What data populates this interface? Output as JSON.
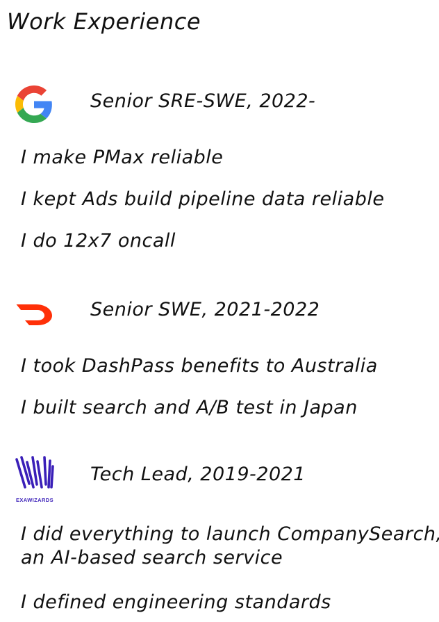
{
  "page": {
    "title": "Work Experience"
  },
  "jobs": [
    {
      "role": "Senior SRE-SWE, 2022-",
      "logo_icon": "google-g-icon",
      "bullets": [
        "I make PMax reliable",
        "I kept Ads build pipeline data reliable",
        "I do 12x7 oncall"
      ]
    },
    {
      "role": "Senior SWE, 2021-2022",
      "logo_icon": "doordash-icon",
      "logo_color": "#ff3008",
      "bullets": [
        "I took DashPass benefits to Australia",
        "I built search and A/B test in Japan"
      ]
    },
    {
      "role": "Tech Lead, 2019-2021",
      "logo_icon": "exawizards-icon",
      "logo_color": "#3a1fb8",
      "logo_text": "EXAWIZARDS",
      "bullets": [
        "I did everything to launch CompanySearch,",
        "an AI-based search service",
        "I defined engineering standards"
      ]
    }
  ]
}
